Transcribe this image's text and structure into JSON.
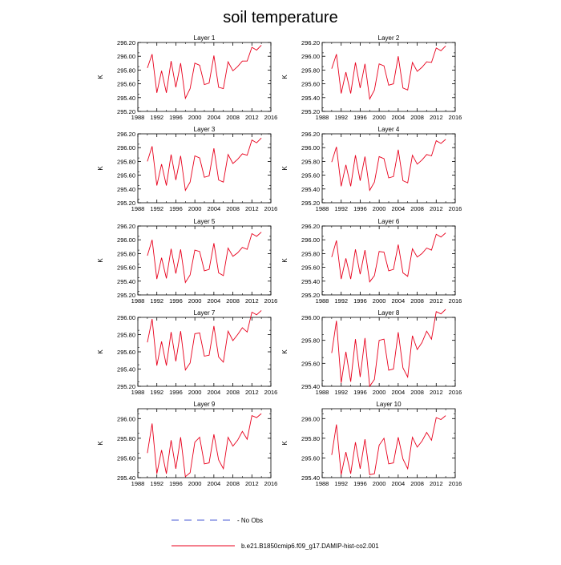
{
  "title": "soil temperature",
  "colors": {
    "sim": "#e8001c",
    "obs": "#4a5bd4",
    "axis": "#000000"
  },
  "legend": {
    "obs_label": "- No Obs",
    "sim_label": "b.e21.B1850cmip6.f09_g17.DAMIP-hist-co2.001"
  },
  "chart_data": [
    {
      "type": "line",
      "title": "Layer 1",
      "xlabel": "",
      "ylabel": "K",
      "xlim": [
        1988,
        2016
      ],
      "ylim": [
        295.2,
        296.2
      ],
      "xticks": [
        "1988",
        "1992",
        "1996",
        "2000",
        "2004",
        "2008",
        "2012",
        "2016"
      ],
      "yticks": [
        "295.20",
        "295.40",
        "295.60",
        "295.80",
        "296.00",
        "296.20"
      ],
      "x": [
        1990,
        1991,
        1992,
        1993,
        1994,
        1995,
        1996,
        1997,
        1998,
        1999,
        2000,
        2001,
        2002,
        2003,
        2004,
        2005,
        2006,
        2007,
        2008,
        2009,
        2010,
        2011,
        2012,
        2013,
        2014
      ],
      "series": [
        {
          "values": [
            295.83,
            296.03,
            295.47,
            295.79,
            295.47,
            295.93,
            295.55,
            295.9,
            295.39,
            295.53,
            295.9,
            295.87,
            295.59,
            295.61,
            296.01,
            295.55,
            295.53,
            295.92,
            295.79,
            295.85,
            295.93,
            295.93,
            296.13,
            296.09,
            296.16
          ]
        }
      ]
    },
    {
      "type": "line",
      "title": "Layer 2",
      "xlabel": "",
      "ylabel": "K",
      "xlim": [
        1988,
        2016
      ],
      "ylim": [
        295.2,
        296.2
      ],
      "xticks": [
        "1988",
        "1992",
        "1996",
        "2000",
        "2004",
        "2008",
        "2012",
        "2016"
      ],
      "yticks": [
        "295.20",
        "295.40",
        "295.60",
        "295.80",
        "296.00",
        "296.20"
      ],
      "x": [
        1990,
        1991,
        1992,
        1993,
        1994,
        1995,
        1996,
        1997,
        1998,
        1999,
        2000,
        2001,
        2002,
        2003,
        2004,
        2005,
        2006,
        2007,
        2008,
        2009,
        2010,
        2011,
        2012,
        2013,
        2014
      ],
      "series": [
        {
          "values": [
            295.82,
            296.03,
            295.46,
            295.77,
            295.46,
            295.91,
            295.54,
            295.89,
            295.38,
            295.51,
            295.89,
            295.86,
            295.58,
            295.6,
            296.0,
            295.54,
            295.51,
            295.91,
            295.78,
            295.84,
            295.92,
            295.91,
            296.12,
            296.08,
            296.15
          ]
        }
      ]
    },
    {
      "type": "line",
      "title": "Layer 3",
      "xlabel": "",
      "ylabel": "K",
      "xlim": [
        1988,
        2016
      ],
      "ylim": [
        295.2,
        296.2
      ],
      "xticks": [
        "1988",
        "1992",
        "1996",
        "2000",
        "2004",
        "2008",
        "2012",
        "2016"
      ],
      "yticks": [
        "295.20",
        "295.40",
        "295.60",
        "295.80",
        "296.00",
        "296.20"
      ],
      "x": [
        1990,
        1991,
        1992,
        1993,
        1994,
        1995,
        1996,
        1997,
        1998,
        1999,
        2000,
        2001,
        2002,
        2003,
        2004,
        2005,
        2006,
        2007,
        2008,
        2009,
        2010,
        2011,
        2012,
        2013,
        2014
      ],
      "series": [
        {
          "values": [
            295.8,
            296.02,
            295.45,
            295.76,
            295.45,
            295.9,
            295.53,
            295.88,
            295.38,
            295.5,
            295.88,
            295.85,
            295.57,
            295.59,
            295.99,
            295.53,
            295.5,
            295.9,
            295.77,
            295.83,
            295.91,
            295.89,
            296.11,
            296.07,
            296.14
          ]
        }
      ]
    },
    {
      "type": "line",
      "title": "Layer 4",
      "xlabel": "",
      "ylabel": "K",
      "xlim": [
        1988,
        2016
      ],
      "ylim": [
        295.2,
        296.2
      ],
      "xticks": [
        "1988",
        "1992",
        "1996",
        "2000",
        "2004",
        "2008",
        "2012",
        "2016"
      ],
      "yticks": [
        "295.20",
        "295.40",
        "295.60",
        "295.80",
        "296.00",
        "296.20"
      ],
      "x": [
        1990,
        1991,
        1992,
        1993,
        1994,
        1995,
        1996,
        1997,
        1998,
        1999,
        2000,
        2001,
        2002,
        2003,
        2004,
        2005,
        2006,
        2007,
        2008,
        2009,
        2010,
        2011,
        2012,
        2013,
        2014
      ],
      "series": [
        {
          "values": [
            295.79,
            296.01,
            295.44,
            295.75,
            295.44,
            295.89,
            295.52,
            295.87,
            295.38,
            295.5,
            295.87,
            295.84,
            295.56,
            295.58,
            295.97,
            295.52,
            295.49,
            295.89,
            295.76,
            295.82,
            295.9,
            295.88,
            296.1,
            296.06,
            296.12
          ]
        }
      ]
    },
    {
      "type": "line",
      "title": "Layer 5",
      "xlabel": "",
      "ylabel": "K",
      "xlim": [
        1988,
        2016
      ],
      "ylim": [
        295.2,
        296.2
      ],
      "xticks": [
        "1988",
        "1992",
        "1996",
        "2000",
        "2004",
        "2008",
        "2012",
        "2016"
      ],
      "yticks": [
        "295.20",
        "295.40",
        "295.60",
        "295.80",
        "296.00",
        "296.20"
      ],
      "x": [
        1990,
        1991,
        1992,
        1993,
        1994,
        1995,
        1996,
        1997,
        1998,
        1999,
        2000,
        2001,
        2002,
        2003,
        2004,
        2005,
        2006,
        2007,
        2008,
        2009,
        2010,
        2011,
        2012,
        2013,
        2014
      ],
      "series": [
        {
          "values": [
            295.77,
            296.0,
            295.43,
            295.74,
            295.44,
            295.87,
            295.51,
            295.86,
            295.38,
            295.49,
            295.85,
            295.83,
            295.55,
            295.57,
            295.95,
            295.52,
            295.48,
            295.88,
            295.76,
            295.81,
            295.89,
            295.86,
            296.09,
            296.05,
            296.11
          ]
        }
      ]
    },
    {
      "type": "line",
      "title": "Layer 6",
      "xlabel": "",
      "ylabel": "K",
      "xlim": [
        1988,
        2016
      ],
      "ylim": [
        295.2,
        296.2
      ],
      "xticks": [
        "1988",
        "1992",
        "1996",
        "2000",
        "2004",
        "2008",
        "2012",
        "2016"
      ],
      "yticks": [
        "295.20",
        "295.40",
        "295.60",
        "295.80",
        "296.00",
        "296.20"
      ],
      "x": [
        1990,
        1991,
        1992,
        1993,
        1994,
        1995,
        1996,
        1997,
        1998,
        1999,
        2000,
        2001,
        2002,
        2003,
        2004,
        2005,
        2006,
        2007,
        2008,
        2009,
        2010,
        2011,
        2012,
        2013,
        2014
      ],
      "series": [
        {
          "values": [
            295.75,
            295.99,
            295.43,
            295.73,
            295.43,
            295.86,
            295.5,
            295.85,
            295.39,
            295.48,
            295.83,
            295.82,
            295.55,
            295.57,
            295.93,
            295.52,
            295.47,
            295.87,
            295.75,
            295.8,
            295.88,
            295.85,
            296.08,
            296.04,
            296.1
          ]
        }
      ]
    },
    {
      "type": "line",
      "title": "Layer 7",
      "xlabel": "",
      "ylabel": "K",
      "xlim": [
        1988,
        2016
      ],
      "ylim": [
        295.2,
        296.0
      ],
      "xticks": [
        "1988",
        "1992",
        "1996",
        "2000",
        "2004",
        "2008",
        "2012",
        "2016"
      ],
      "yticks": [
        "295.20",
        "295.40",
        "295.60",
        "295.80",
        "296.00"
      ],
      "x": [
        1990,
        1991,
        1992,
        1993,
        1994,
        1995,
        1996,
        1997,
        1998,
        1999,
        2000,
        2001,
        2002,
        2003,
        2004,
        2005,
        2006,
        2007,
        2008,
        2009,
        2010,
        2011,
        2012,
        2013,
        2014
      ],
      "series": [
        {
          "values": [
            295.71,
            295.98,
            295.44,
            295.72,
            295.44,
            295.83,
            295.49,
            295.84,
            295.39,
            295.47,
            295.81,
            295.82,
            295.55,
            295.56,
            295.9,
            295.54,
            295.48,
            295.84,
            295.73,
            295.8,
            295.88,
            295.83,
            296.06,
            296.03,
            296.08
          ]
        }
      ]
    },
    {
      "type": "line",
      "title": "Layer 8",
      "xlabel": "",
      "ylabel": "K",
      "xlim": [
        1988,
        2016
      ],
      "ylim": [
        295.4,
        296.0
      ],
      "xticks": [
        "1988",
        "1992",
        "1996",
        "2000",
        "2004",
        "2008",
        "2012",
        "2016"
      ],
      "yticks": [
        "295.40",
        "295.60",
        "295.80",
        "296.00"
      ],
      "x": [
        1990,
        1991,
        1992,
        1993,
        1994,
        1995,
        1996,
        1997,
        1998,
        1999,
        2000,
        2001,
        2002,
        2003,
        2004,
        2005,
        2006,
        2007,
        2008,
        2009,
        2010,
        2011,
        2012,
        2013,
        2014
      ],
      "series": [
        {
          "values": [
            295.69,
            295.97,
            295.43,
            295.7,
            295.44,
            295.81,
            295.48,
            295.82,
            295.4,
            295.46,
            295.8,
            295.81,
            295.54,
            295.55,
            295.87,
            295.56,
            295.48,
            295.84,
            295.72,
            295.78,
            295.88,
            295.81,
            296.05,
            296.03,
            296.07
          ]
        }
      ]
    },
    {
      "type": "line",
      "title": "Layer 9",
      "xlabel": "",
      "ylabel": "K",
      "xlim": [
        1988,
        2016
      ],
      "ylim": [
        295.4,
        296.1
      ],
      "xticks": [
        "1988",
        "1992",
        "1996",
        "2000",
        "2004",
        "2008",
        "2012",
        "2016"
      ],
      "yticks": [
        "295.40",
        "295.60",
        "295.80",
        "296.00"
      ],
      "x": [
        1990,
        1991,
        1992,
        1993,
        1994,
        1995,
        1996,
        1997,
        1998,
        1999,
        2000,
        2001,
        2002,
        2003,
        2004,
        2005,
        2006,
        2007,
        2008,
        2009,
        2010,
        2011,
        2012,
        2013,
        2014
      ],
      "series": [
        {
          "values": [
            295.65,
            295.95,
            295.44,
            295.68,
            295.44,
            295.78,
            295.49,
            295.81,
            295.41,
            295.45,
            295.76,
            295.81,
            295.54,
            295.55,
            295.84,
            295.58,
            295.49,
            295.81,
            295.72,
            295.78,
            295.87,
            295.79,
            296.03,
            296.01,
            296.05
          ]
        }
      ]
    },
    {
      "type": "line",
      "title": "Layer 10",
      "xlabel": "",
      "ylabel": "K",
      "xlim": [
        1988,
        2016
      ],
      "ylim": [
        295.4,
        296.1
      ],
      "xticks": [
        "1988",
        "1992",
        "1996",
        "2000",
        "2004",
        "2008",
        "2012",
        "2016"
      ],
      "yticks": [
        "295.40",
        "295.60",
        "295.80",
        "296.00"
      ],
      "x": [
        1990,
        1991,
        1992,
        1993,
        1994,
        1995,
        1996,
        1997,
        1998,
        1999,
        2000,
        2001,
        2002,
        2003,
        2004,
        2005,
        2006,
        2007,
        2008,
        2009,
        2010,
        2011,
        2012,
        2013,
        2014
      ],
      "series": [
        {
          "values": [
            295.63,
            295.94,
            295.43,
            295.66,
            295.44,
            295.76,
            295.49,
            295.79,
            295.43,
            295.44,
            295.73,
            295.8,
            295.54,
            295.55,
            295.81,
            295.59,
            295.49,
            295.81,
            295.71,
            295.77,
            295.86,
            295.78,
            296.01,
            295.99,
            296.03
          ]
        }
      ]
    }
  ]
}
